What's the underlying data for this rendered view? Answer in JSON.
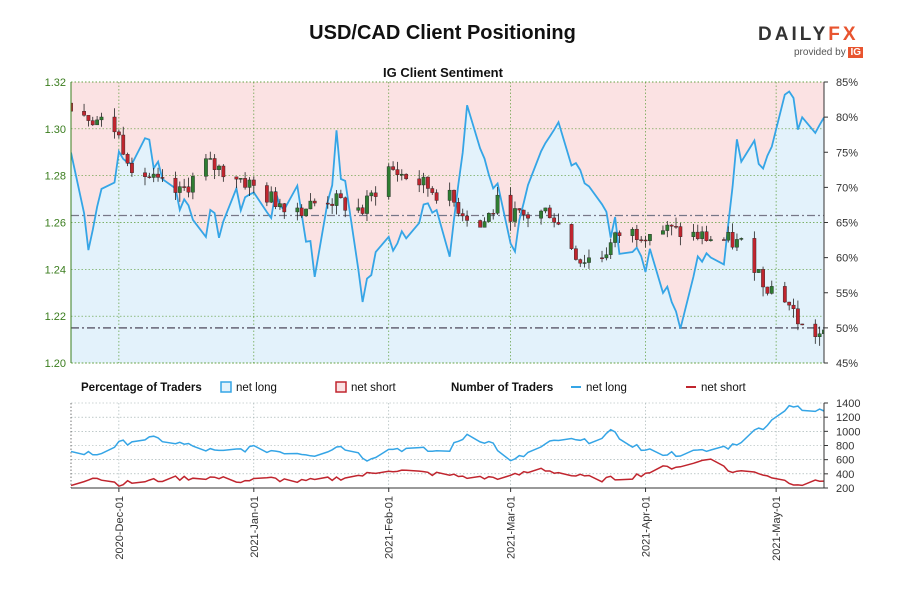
{
  "header": {
    "title": "USD/CAD Client Positioning",
    "logo_word_main": "DAILY",
    "logo_word_accent": "FX",
    "logo_provided": "provided by",
    "logo_ig": "IG"
  },
  "colors": {
    "long_line": "#35a5e6",
    "long_fill": "#e3f2fb",
    "short_fill": "#fbe2e3",
    "short_line": "#c0252e",
    "candle_up": "#2f7d32",
    "candle_down": "#c0252e",
    "grid": "#5c9c3a",
    "level_line": "#777788"
  },
  "legend": {
    "pct_title": "Percentage of Traders",
    "pct_long": "net long",
    "pct_short": "net short",
    "num_title": "Number of Traders",
    "num_long": "net long",
    "num_short": "net short"
  },
  "chart_data": [
    {
      "type": "candlestick",
      "title": "IG Client Sentiment",
      "ylim": [
        1.2,
        1.32
      ],
      "y_ticks": [
        "1.32",
        "1.30",
        "1.28",
        "1.26",
        "1.24",
        "1.22",
        "1.20"
      ],
      "y2lim": [
        45,
        85
      ],
      "y2_ticks": [
        "85%",
        "80%",
        "75%",
        "70%",
        "65%",
        "60%",
        "55%",
        "50%",
        "45%"
      ],
      "x_range": [
        "2020-11-20",
        "2021-05-12"
      ],
      "price_anchors": [
        [
          "2020-11-20",
          1.311
        ],
        [
          "2020-11-25",
          1.305
        ],
        [
          "2020-11-30",
          1.3
        ],
        [
          "2020-12-04",
          1.285
        ],
        [
          "2020-12-10",
          1.276
        ],
        [
          "2020-12-15",
          1.272
        ],
        [
          "2020-12-21",
          1.285
        ],
        [
          "2020-12-28",
          1.28
        ],
        [
          "2021-01-05",
          1.27
        ],
        [
          "2021-01-12",
          1.266
        ],
        [
          "2021-01-18",
          1.27
        ],
        [
          "2021-01-26",
          1.265
        ],
        [
          "2021-02-01",
          1.283
        ],
        [
          "2021-02-08",
          1.277
        ],
        [
          "2021-02-15",
          1.27
        ],
        [
          "2021-02-22",
          1.258
        ],
        [
          "2021-02-26",
          1.268
        ],
        [
          "2021-03-03",
          1.262
        ],
        [
          "2021-03-10",
          1.265
        ],
        [
          "2021-03-17",
          1.244
        ],
        [
          "2021-03-22",
          1.246
        ],
        [
          "2021-03-26",
          1.255
        ],
        [
          "2021-04-05",
          1.257
        ],
        [
          "2021-04-13",
          1.254
        ],
        [
          "2021-04-20",
          1.252
        ],
        [
          "2021-04-24",
          1.25
        ],
        [
          "2021-04-28",
          1.235
        ],
        [
          "2021-05-03",
          1.228
        ],
        [
          "2021-05-07",
          1.215
        ],
        [
          "2021-05-12",
          1.211
        ]
      ],
      "net_long_pct_anchors": [
        [
          "2020-11-20",
          75
        ],
        [
          "2020-11-24",
          63
        ],
        [
          "2020-11-28",
          72
        ],
        [
          "2020-12-03",
          74
        ],
        [
          "2020-12-08",
          76
        ],
        [
          "2020-12-14",
          69
        ],
        [
          "2020-12-18",
          67
        ],
        [
          "2020-12-23",
          64
        ],
        [
          "2020-12-30",
          69
        ],
        [
          "2021-01-06",
          67
        ],
        [
          "2021-01-11",
          70
        ],
        [
          "2021-01-15",
          58
        ],
        [
          "2021-01-20",
          76
        ],
        [
          "2021-01-26",
          55
        ],
        [
          "2021-01-30",
          61
        ],
        [
          "2021-02-04",
          64
        ],
        [
          "2021-02-09",
          68
        ],
        [
          "2021-02-15",
          61
        ],
        [
          "2021-02-19",
          80
        ],
        [
          "2021-02-24",
          73
        ],
        [
          "2021-03-02",
          62
        ],
        [
          "2021-03-06",
          70
        ],
        [
          "2021-03-12",
          79
        ],
        [
          "2021-03-18",
          72
        ],
        [
          "2021-03-24",
          64
        ],
        [
          "2021-04-01",
          60
        ],
        [
          "2021-04-06",
          54
        ],
        [
          "2021-04-10",
          51
        ],
        [
          "2021-04-15",
          63
        ],
        [
          "2021-04-19",
          58
        ],
        [
          "2021-04-22",
          75
        ],
        [
          "2021-04-28",
          75
        ],
        [
          "2021-05-03",
          83
        ],
        [
          "2021-05-06",
          80
        ],
        [
          "2021-05-12",
          80
        ]
      ],
      "levels": [
        {
          "axis": "price",
          "value": 1.263
        },
        {
          "axis": "pct",
          "value": 50
        }
      ]
    },
    {
      "type": "line",
      "title": "Number of Traders",
      "ylim": [
        200,
        1400
      ],
      "y_ticks": [
        "1400",
        "1200",
        "1000",
        "800",
        "600",
        "400",
        "200"
      ],
      "x_ticks": [
        "2020-Dec-01",
        "2021-Jan-01",
        "2021-Feb-01",
        "2021-Mar-01",
        "2021-Apr-01",
        "2021-May-01"
      ],
      "series": [
        {
          "name": "net long",
          "anchors": [
            [
              "2020-11-20",
              700
            ],
            [
              "2020-11-26",
              680
            ],
            [
              "2020-12-01",
              820
            ],
            [
              "2020-12-06",
              900
            ],
            [
              "2020-12-11",
              880
            ],
            [
              "2020-12-17",
              800
            ],
            [
              "2020-12-24",
              700
            ],
            [
              "2020-12-31",
              760
            ],
            [
              "2021-01-07",
              720
            ],
            [
              "2021-01-15",
              680
            ],
            [
              "2021-01-21",
              800
            ],
            [
              "2021-01-27",
              620
            ],
            [
              "2021-02-02",
              760
            ],
            [
              "2021-02-08",
              740
            ],
            [
              "2021-02-14",
              700
            ],
            [
              "2021-02-19",
              960
            ],
            [
              "2021-02-25",
              820
            ],
            [
              "2021-03-01",
              560
            ],
            [
              "2021-03-06",
              720
            ],
            [
              "2021-03-12",
              880
            ],
            [
              "2021-03-18",
              850
            ],
            [
              "2021-03-24",
              980
            ],
            [
              "2021-04-01",
              720
            ],
            [
              "2021-04-08",
              680
            ],
            [
              "2021-04-15",
              720
            ],
            [
              "2021-04-21",
              800
            ],
            [
              "2021-04-25",
              950
            ],
            [
              "2021-04-30",
              1150
            ],
            [
              "2021-05-04",
              1380
            ],
            [
              "2021-05-08",
              1260
            ],
            [
              "2021-05-12",
              1300
            ]
          ]
        },
        {
          "name": "net short",
          "anchors": [
            [
              "2020-11-20",
              250
            ],
            [
              "2020-11-25",
              360
            ],
            [
              "2020-12-01",
              260
            ],
            [
              "2020-12-08",
              300
            ],
            [
              "2020-12-15",
              340
            ],
            [
              "2020-12-22",
              350
            ],
            [
              "2020-12-29",
              300
            ],
            [
              "2021-01-05",
              330
            ],
            [
              "2021-01-12",
              290
            ],
            [
              "2021-01-19",
              330
            ],
            [
              "2021-01-26",
              380
            ],
            [
              "2021-02-01",
              460
            ],
            [
              "2021-02-08",
              420
            ],
            [
              "2021-02-15",
              380
            ],
            [
              "2021-02-22",
              340
            ],
            [
              "2021-03-01",
              360
            ],
            [
              "2021-03-08",
              470
            ],
            [
              "2021-03-15",
              380
            ],
            [
              "2021-03-22",
              320
            ],
            [
              "2021-03-29",
              360
            ],
            [
              "2021-04-05",
              480
            ],
            [
              "2021-04-12",
              540
            ],
            [
              "2021-04-16",
              640
            ],
            [
              "2021-04-20",
              440
            ],
            [
              "2021-04-27",
              420
            ],
            [
              "2021-05-03",
              300
            ],
            [
              "2021-05-08",
              240
            ],
            [
              "2021-05-12",
              320
            ]
          ]
        }
      ]
    }
  ]
}
